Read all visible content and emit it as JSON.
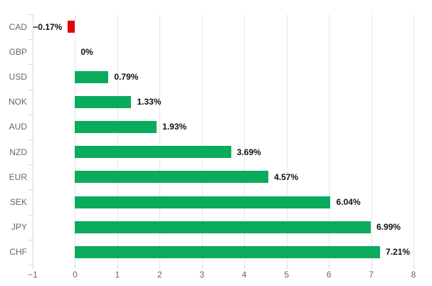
{
  "chart_data": {
    "type": "bar",
    "orientation": "horizontal",
    "title": "",
    "xlabel": "",
    "ylabel": "",
    "categories": [
      "CAD",
      "GBP",
      "USD",
      "NOK",
      "AUD",
      "NZD",
      "EUR",
      "SEK",
      "JPY",
      "CHF"
    ],
    "values": [
      -0.17,
      0,
      0.79,
      1.33,
      1.93,
      3.69,
      4.57,
      6.04,
      6.99,
      7.21
    ],
    "value_labels": [
      "−0.17%",
      "0%",
      "0.79%",
      "1.33%",
      "1.93%",
      "3.69%",
      "4.57%",
      "6.04%",
      "6.99%",
      "7.21%"
    ],
    "x_ticks": [
      -1,
      0,
      1,
      2,
      3,
      4,
      5,
      6,
      7,
      8
    ],
    "x_tick_labels": [
      "−1",
      "0",
      "1",
      "2",
      "3",
      "4",
      "5",
      "6",
      "7",
      "8"
    ],
    "xlim": [
      -1,
      8
    ],
    "grid": true,
    "legend": false,
    "colors": {
      "positive_bar": "#0aab5c",
      "negative_bar": "#e10600",
      "gridline": "#e6e6e6",
      "axis": "#ccd6eb",
      "tick_text": "#666666",
      "category_text": "#666666",
      "value_text": "#111111",
      "background": "#ffffff"
    }
  }
}
